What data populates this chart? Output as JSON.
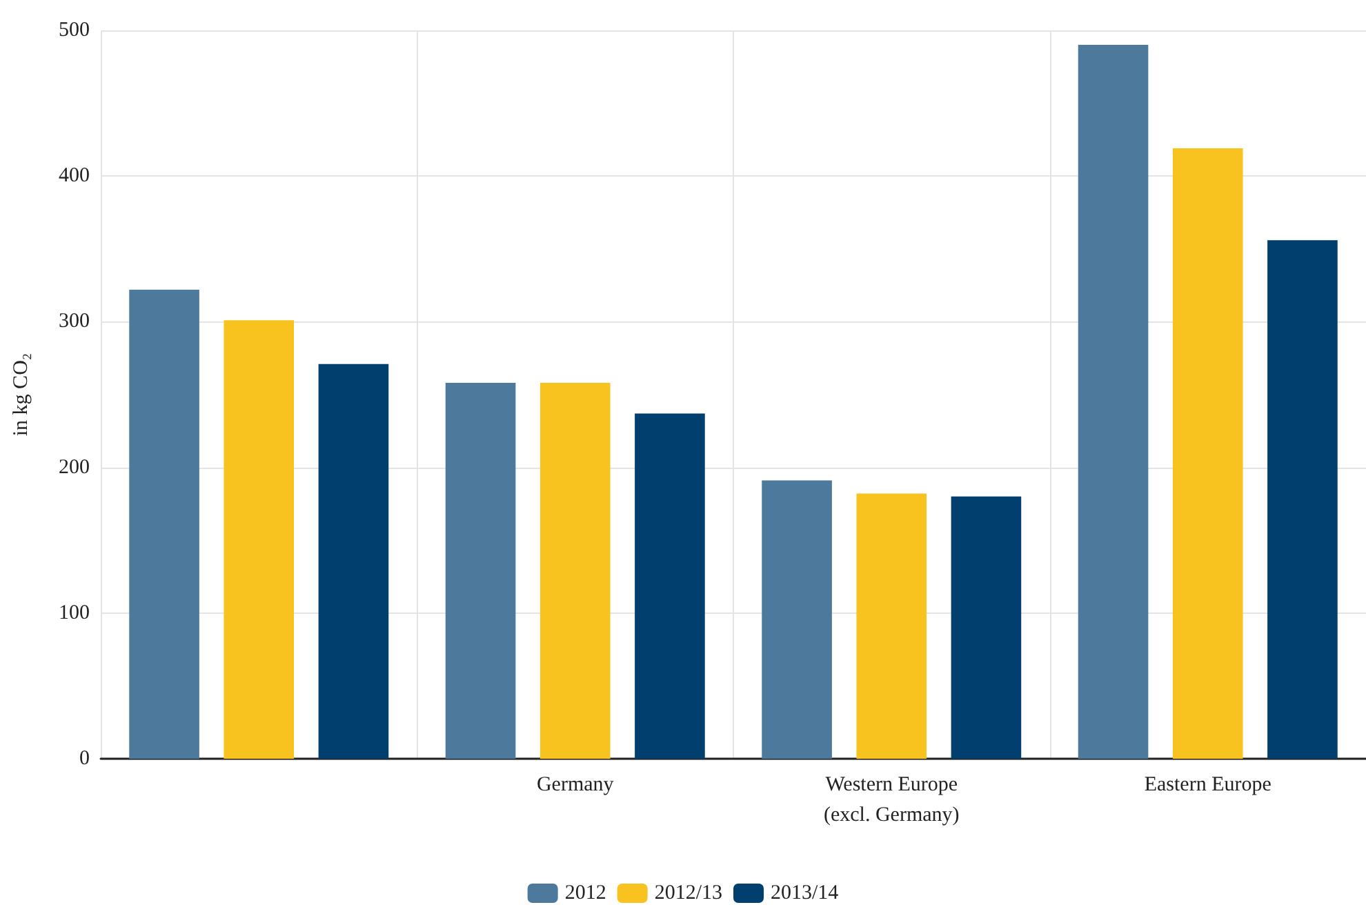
{
  "chart_data": {
    "type": "bar",
    "ylabel": "in kg CO₂",
    "categories": [
      null,
      "Germany",
      "Western Europe\n(excl. Germany)",
      "Eastern Europe"
    ],
    "series": [
      {
        "name": "2012",
        "color": "#4d7a9c",
        "values": [
          322,
          258,
          191,
          490
        ]
      },
      {
        "name": "2012/13",
        "color": "#f8c31f",
        "values": [
          301,
          258,
          182,
          419
        ]
      },
      {
        "name": "2013/14",
        "color": "#003f6e",
        "values": [
          271,
          237,
          180,
          356
        ]
      }
    ],
    "ylim": [
      0,
      500
    ],
    "yticks": [
      0,
      100,
      200,
      300,
      400,
      500
    ],
    "grid": true,
    "legend": "bottom"
  }
}
